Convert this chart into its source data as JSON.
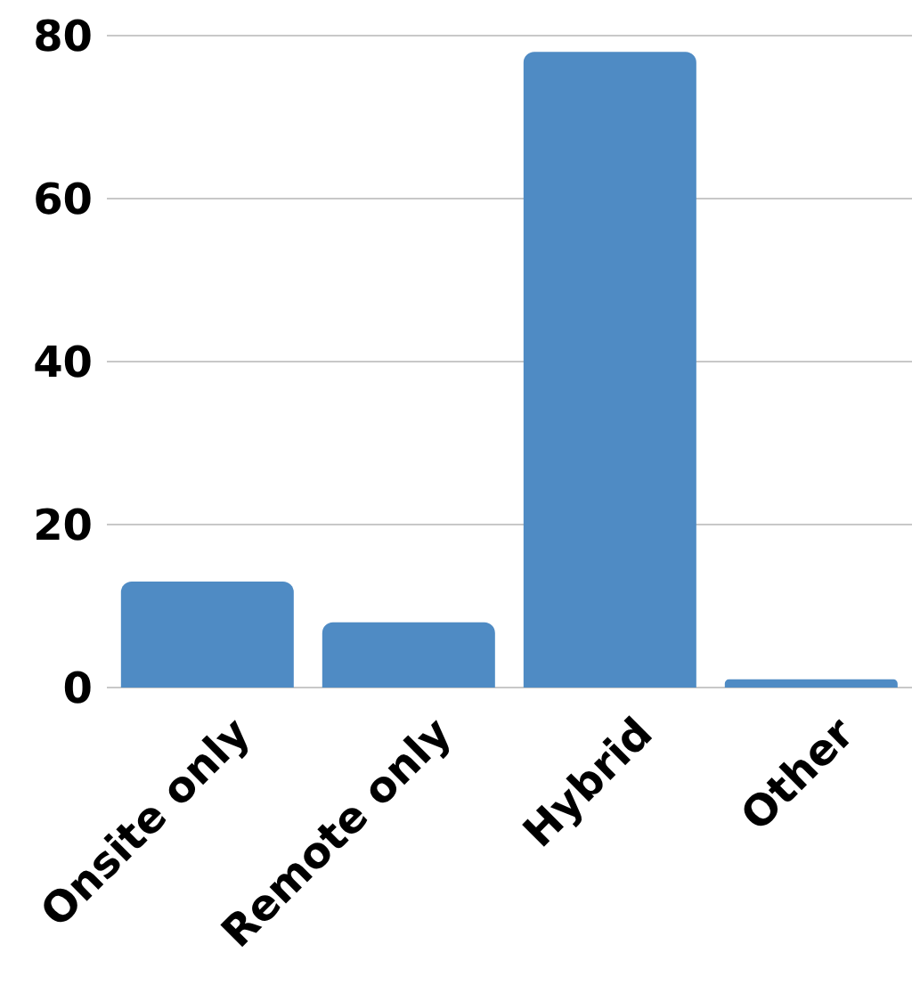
{
  "chart_data": {
    "type": "bar",
    "categories": [
      "Onsite only",
      "Remote only",
      "Hybrid",
      "Other"
    ],
    "values": [
      13,
      8,
      78,
      1
    ],
    "color": "#4f8bc4",
    "ylim": [
      0,
      80
    ],
    "yticks": [
      0,
      20,
      40,
      60,
      80
    ],
    "grid": "y"
  }
}
